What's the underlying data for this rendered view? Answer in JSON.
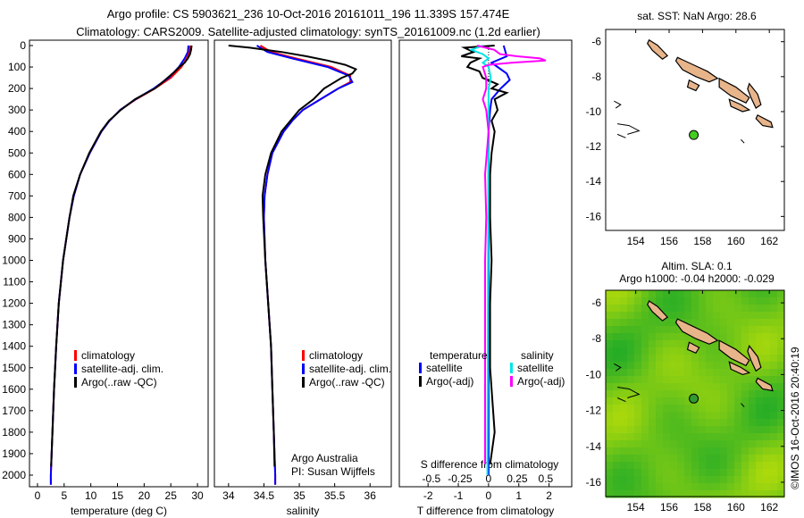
{
  "title": {
    "line1": "Argo profile: CS 5903621_236 10-Oct-2016 20161011_196 11.339S 157.474E",
    "line2": "Climatology: CARS2009. Satellite-adjusted climatology: synTS_20161009.nc (1.2d earlier)"
  },
  "colors": {
    "climatology": "#ff0000",
    "satellite": "#0000ff",
    "argo": "#000000",
    "sal_satellite": "#00e5e5",
    "sal_argo": "#ff00ff",
    "land": "#e8b48a",
    "argo_point": "#44cc22"
  },
  "chart_data": [
    {
      "type": "line",
      "id": "temperature",
      "xlabel": "temperature (deg C)",
      "ylabel": "depth",
      "xlim": [
        -1.5,
        32
      ],
      "ylim": [
        2055,
        0
      ],
      "xticks": [
        0,
        5,
        10,
        15,
        20,
        25,
        30
      ],
      "yticks": [
        0,
        100,
        200,
        300,
        400,
        500,
        600,
        700,
        800,
        900,
        1000,
        1100,
        1200,
        1300,
        1400,
        1500,
        1600,
        1700,
        1800,
        1900,
        2000
      ],
      "legend": [
        "climatology",
        "satellite-adj. clim.",
        "Argo(..raw -QC)"
      ],
      "series": [
        {
          "name": "climatology",
          "color": "#ff0000",
          "points": [
            [
              0,
              28.6
            ],
            [
              30,
              28.5
            ],
            [
              60,
              28
            ],
            [
              100,
              27
            ],
            [
              150,
              25
            ],
            [
              200,
              22
            ],
            [
              250,
              18.5
            ],
            [
              300,
              15.5
            ],
            [
              350,
              13.5
            ],
            [
              400,
              12
            ],
            [
              500,
              9.8
            ],
            [
              600,
              8
            ],
            [
              700,
              6.8
            ],
            [
              800,
              6
            ],
            [
              1000,
              4.8
            ],
            [
              1200,
              4
            ],
            [
              1400,
              3.5
            ],
            [
              1600,
              3.1
            ],
            [
              1800,
              2.8
            ],
            [
              2000,
              2.5
            ],
            [
              2045,
              2.5
            ]
          ]
        },
        {
          "name": "satellite-adj. clim.",
          "color": "#0000ff",
          "points": [
            [
              0,
              28.3
            ],
            [
              30,
              28.2
            ],
            [
              60,
              27.6
            ],
            [
              100,
              26.5
            ],
            [
              150,
              24.6
            ],
            [
              200,
              21.8
            ],
            [
              250,
              18.4
            ],
            [
              300,
              15.5
            ],
            [
              350,
              13.5
            ],
            [
              400,
              12
            ],
            [
              500,
              9.8
            ],
            [
              600,
              8
            ],
            [
              700,
              6.8
            ],
            [
              800,
              6
            ],
            [
              1000,
              4.8
            ],
            [
              1200,
              4
            ],
            [
              1400,
              3.5
            ],
            [
              1600,
              3.1
            ],
            [
              1800,
              2.8
            ],
            [
              2000,
              2.5
            ],
            [
              2045,
              2.5
            ]
          ]
        },
        {
          "name": "Argo(..raw -QC)",
          "color": "#000000",
          "points": [
            [
              0,
              28.9
            ],
            [
              20,
              28.8
            ],
            [
              40,
              28.6
            ],
            [
              60,
              28.2
            ],
            [
              80,
              27.6
            ],
            [
              100,
              26.6
            ],
            [
              120,
              25.8
            ],
            [
              150,
              24.4
            ],
            [
              180,
              23
            ],
            [
              200,
              22
            ],
            [
              250,
              18.3
            ],
            [
              300,
              15.6
            ],
            [
              350,
              13.4
            ],
            [
              400,
              11.9
            ],
            [
              500,
              9.7
            ],
            [
              600,
              8
            ],
            [
              700,
              6.7
            ],
            [
              800,
              6
            ],
            [
              1000,
              4.8
            ],
            [
              1200,
              4
            ],
            [
              1400,
              3.5
            ],
            [
              1600,
              3.1
            ],
            [
              1800,
              2.8
            ],
            [
              1960,
              2.55
            ]
          ]
        }
      ]
    },
    {
      "type": "line",
      "id": "salinity",
      "xlabel": "salinity",
      "xlim": [
        33.8,
        36.3
      ],
      "ylim": [
        2055,
        0
      ],
      "xticks": [
        "34",
        "34.5",
        "35",
        "35.5",
        "36"
      ],
      "legend": [
        "climatology",
        "satellite-adj. clim.",
        "Argo(..raw -QC)"
      ],
      "annotations": [
        "Argo Australia",
        "PI: Susan Wijffels"
      ],
      "series": [
        {
          "name": "climatology",
          "color": "#ff0000",
          "points": [
            [
              0,
              34.45
            ],
            [
              30,
              34.6
            ],
            [
              60,
              34.95
            ],
            [
              100,
              35.45
            ],
            [
              140,
              35.72
            ],
            [
              170,
              35.72
            ],
            [
              200,
              35.55
            ],
            [
              250,
              35.3
            ],
            [
              300,
              35.05
            ],
            [
              350,
              34.9
            ],
            [
              400,
              34.78
            ],
            [
              500,
              34.62
            ],
            [
              600,
              34.55
            ],
            [
              700,
              34.51
            ],
            [
              800,
              34.5
            ],
            [
              1000,
              34.52
            ],
            [
              1200,
              34.56
            ],
            [
              1400,
              34.6
            ],
            [
              1600,
              34.62
            ],
            [
              1800,
              34.64
            ],
            [
              2000,
              34.66
            ],
            [
              2045,
              34.66
            ]
          ]
        },
        {
          "name": "satellite-adj. clim.",
          "color": "#0000ff",
          "points": [
            [
              0,
              34.4
            ],
            [
              30,
              34.55
            ],
            [
              60,
              34.9
            ],
            [
              100,
              35.4
            ],
            [
              140,
              35.7
            ],
            [
              170,
              35.75
            ],
            [
              200,
              35.55
            ],
            [
              250,
              35.3
            ],
            [
              300,
              35.05
            ],
            [
              350,
              34.9
            ],
            [
              400,
              34.78
            ],
            [
              500,
              34.62
            ],
            [
              600,
              34.55
            ],
            [
              700,
              34.51
            ],
            [
              800,
              34.5
            ],
            [
              1000,
              34.52
            ],
            [
              1200,
              34.56
            ],
            [
              1400,
              34.6
            ],
            [
              1600,
              34.62
            ],
            [
              1800,
              34.64
            ],
            [
              2000,
              34.66
            ],
            [
              2045,
              34.66
            ]
          ]
        },
        {
          "name": "Argo(..raw -QC)",
          "color": "#000000",
          "points": [
            [
              0,
              34.0
            ],
            [
              10,
              34.3
            ],
            [
              30,
              34.75
            ],
            [
              50,
              35.1
            ],
            [
              70,
              35.4
            ],
            [
              90,
              35.65
            ],
            [
              110,
              35.8
            ],
            [
              130,
              35.75
            ],
            [
              150,
              35.6
            ],
            [
              180,
              35.45
            ],
            [
              200,
              35.35
            ],
            [
              250,
              35.2
            ],
            [
              300,
              35.0
            ],
            [
              400,
              34.75
            ],
            [
              500,
              34.6
            ],
            [
              600,
              34.52
            ],
            [
              700,
              34.48
            ],
            [
              800,
              34.49
            ],
            [
              1000,
              34.52
            ],
            [
              1200,
              34.56
            ],
            [
              1400,
              34.6
            ],
            [
              1600,
              34.62
            ],
            [
              1800,
              34.64
            ],
            [
              1960,
              34.65
            ]
          ]
        }
      ]
    },
    {
      "type": "line",
      "id": "difference",
      "xlabel": "T difference from climatology",
      "x2label": "S difference from climatology",
      "xlim": [
        -2.95,
        2.75
      ],
      "ylim": [
        2055,
        0
      ],
      "xticks": [
        "-2",
        "-1",
        "0",
        "1",
        "2"
      ],
      "x2ticks": [
        "-0.5",
        "-0.25",
        "0",
        "0.25",
        "0.5"
      ],
      "legend_temperature": {
        "title": "temperature",
        "items": [
          "satellite",
          "Argo(-adj)"
        ]
      },
      "legend_salinity": {
        "title": "salinity",
        "items": [
          "satellite",
          "Argo(-adj)"
        ]
      },
      "series": [
        {
          "name": "T satellite",
          "color": "#0000ff",
          "units": "T",
          "points": [
            [
              0,
              0.5
            ],
            [
              50,
              0.6
            ],
            [
              80,
              0.1
            ],
            [
              100,
              0.3
            ],
            [
              130,
              0.6
            ],
            [
              160,
              0.7
            ],
            [
              200,
              0.4
            ],
            [
              250,
              0.1
            ],
            [
              300,
              0.05
            ],
            [
              400,
              0
            ],
            [
              2000,
              0
            ]
          ]
        },
        {
          "name": "T Argo(-adj)",
          "color": "#000000",
          "units": "T",
          "points": [
            [
              0,
              0.2
            ],
            [
              10,
              -0.8
            ],
            [
              30,
              -0.5
            ],
            [
              50,
              -0.9
            ],
            [
              60,
              -0.3
            ],
            [
              80,
              -0.6
            ],
            [
              100,
              -0.7
            ],
            [
              120,
              -0.3
            ],
            [
              150,
              -0.2
            ],
            [
              180,
              0.3
            ],
            [
              200,
              0.1
            ],
            [
              220,
              0.6
            ],
            [
              250,
              0.2
            ],
            [
              300,
              0.3
            ],
            [
              350,
              0.1
            ],
            [
              400,
              0.2
            ],
            [
              500,
              0.1
            ],
            [
              600,
              0.05
            ],
            [
              800,
              0.05
            ],
            [
              1000,
              0.1
            ],
            [
              1200,
              0.05
            ],
            [
              1500,
              0.05
            ],
            [
              1700,
              0.15
            ],
            [
              1800,
              0.2
            ],
            [
              1850,
              0.15
            ],
            [
              1950,
              0.05
            ]
          ]
        },
        {
          "name": "S satellite",
          "color": "#00e5e5",
          "units": "S",
          "points": [
            [
              0,
              -0.05
            ],
            [
              20,
              -0.15
            ],
            [
              40,
              -0.05
            ],
            [
              60,
              0.0
            ],
            [
              80,
              -0.05
            ],
            [
              100,
              0.0
            ],
            [
              150,
              0.02
            ],
            [
              200,
              0.0
            ],
            [
              2000,
              -0.01
            ]
          ]
        },
        {
          "name": "S Argo(-adj)",
          "color": "#ff00ff",
          "units": "S",
          "points": [
            [
              0,
              -0.1
            ],
            [
              20,
              0.05
            ],
            [
              40,
              0.1
            ],
            [
              50,
              0.25
            ],
            [
              60,
              0.45
            ],
            [
              70,
              0.5
            ],
            [
              80,
              0.2
            ],
            [
              90,
              0.0
            ],
            [
              100,
              -0.05
            ],
            [
              150,
              -0.02
            ],
            [
              200,
              -0.02
            ],
            [
              250,
              -0.05
            ],
            [
              300,
              -0.02
            ],
            [
              400,
              0
            ],
            [
              600,
              -0.03
            ],
            [
              800,
              -0.02
            ],
            [
              1000,
              -0.03
            ],
            [
              1500,
              -0.03
            ],
            [
              1950,
              -0.03
            ]
          ]
        }
      ]
    }
  ],
  "maps": {
    "sst": {
      "title": "sat. SST: NaN Argo: 28.6",
      "lon_ticks": [
        "154",
        "156",
        "158",
        "160",
        "162"
      ],
      "lat_ticks": [
        "-6",
        "-8",
        "-10",
        "-12",
        "-14",
        "-16"
      ]
    },
    "sla": {
      "title1": "Altim. SLA: 0.1",
      "title2": "Argo h1000: -0.04 h2000: -0.029",
      "lon_ticks": [
        "154",
        "156",
        "158",
        "160",
        "162"
      ],
      "lat_ticks": [
        "-6",
        "-8",
        "-10",
        "-12",
        "-14",
        "-16"
      ]
    },
    "argo_position": {
      "lon": 157.474,
      "lat": -11.339
    }
  },
  "credit": "©IMOS 16-Oct-2016 20:40:19"
}
